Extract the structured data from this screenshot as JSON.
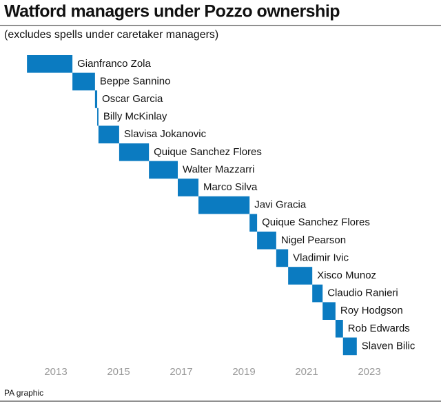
{
  "chart_data": {
    "type": "gantt",
    "title": "Watford managers under Pozzo ownership",
    "subtitle": "(excludes spells under caretaker managers)",
    "source": "PA graphic",
    "color": "#0b7bc1",
    "categories": [
      "Gianfranco Zola",
      "Beppe Sannino",
      "Oscar Garcia",
      "Billy McKinlay",
      "Slavisa Jokanovic",
      "Quique Sanchez Flores",
      "Walter Mazzarri",
      "Marco Silva",
      "Javi Gracia",
      "Quique Sanchez Flores",
      "Nigel Pearson",
      "Vladimir Ivic",
      "Xisco Munoz",
      "Claudio Ranieri",
      "Roy Hodgson",
      "Rob Edwards",
      "Slaven Bilic"
    ],
    "start": [
      2012.08,
      2013.53,
      2014.25,
      2014.32,
      2014.36,
      2015.02,
      2015.97,
      2016.89,
      2017.55,
      2019.18,
      2019.42,
      2020.03,
      2020.41,
      2021.18,
      2021.51,
      2021.92,
      2022.16
    ],
    "end": [
      2013.53,
      2014.25,
      2014.32,
      2014.36,
      2015.02,
      2015.97,
      2016.89,
      2017.55,
      2019.18,
      2019.42,
      2020.03,
      2020.41,
      2021.18,
      2021.51,
      2021.92,
      2022.16,
      2022.6
    ],
    "xlim": [
      2012,
      2023.5
    ],
    "xticks": [
      2013,
      2015,
      2017,
      2019,
      2021,
      2023
    ]
  }
}
